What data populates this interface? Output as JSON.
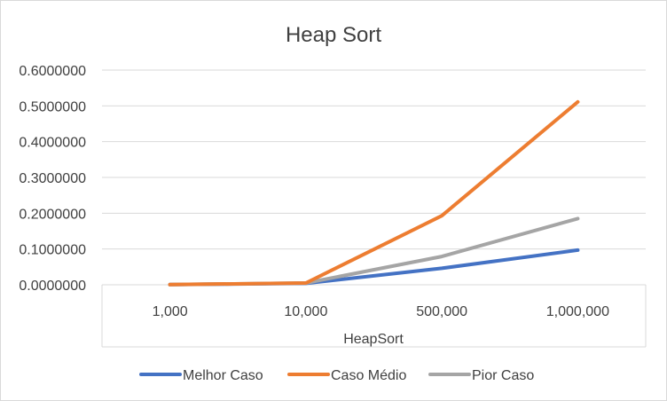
{
  "chart_data": {
    "type": "line",
    "title": "Heap Sort",
    "xlabel": "HeapSort",
    "ylabel": "",
    "categories": [
      "1,000",
      "10,000",
      "500,000",
      "1,000,000"
    ],
    "ylim": [
      0,
      0.6
    ],
    "yticks": [
      "0.0000000",
      "0.1000000",
      "0.2000000",
      "0.3000000",
      "0.4000000",
      "0.5000000",
      "0.6000000"
    ],
    "grid": true,
    "legend_position": "bottom",
    "series": [
      {
        "name": "Melhor Caso",
        "color": "#4472c4",
        "values": [
          0.0005,
          0.004,
          0.046,
          0.097
        ]
      },
      {
        "name": "Caso Médio",
        "color": "#ed7d31",
        "values": [
          0.0005,
          0.005,
          0.193,
          0.511
        ]
      },
      {
        "name": "Pior Caso",
        "color": "#a5a5a5",
        "values": [
          0.0005,
          0.005,
          0.079,
          0.185
        ]
      }
    ]
  }
}
